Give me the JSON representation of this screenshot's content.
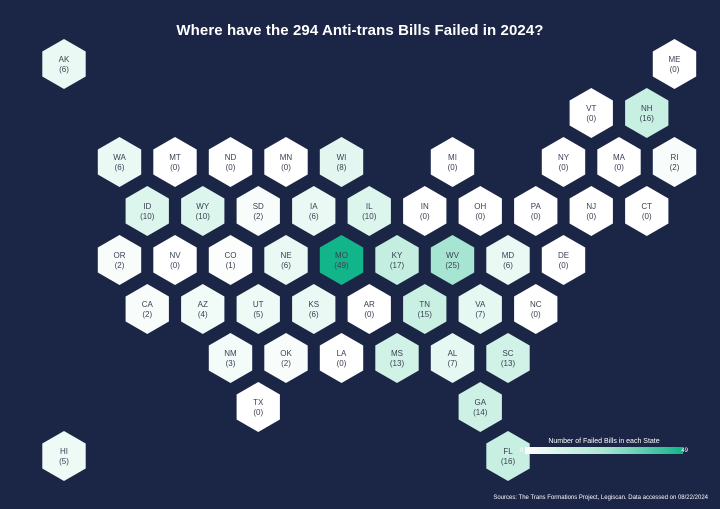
{
  "title": "Where have the 294 Anti-trans Bills Failed in 2024?",
  "legend": {
    "title": "Number of Failed Bills in each State",
    "min": "0",
    "max": "49",
    "colors": [
      "#ffffff",
      "#a9e6d2",
      "#12b58a"
    ]
  },
  "source": "Sources: The Trans Formations Project, Legiscan.  Data accessed on 08/22/2024",
  "states": [
    {
      "abbr": "AK",
      "value": 6,
      "row": 0,
      "col": 0
    },
    {
      "abbr": "ME",
      "value": 0,
      "row": 0,
      "col": 11
    },
    {
      "abbr": "VT",
      "value": 0,
      "row": 1,
      "col": 9.5
    },
    {
      "abbr": "NH",
      "value": 16,
      "row": 1,
      "col": 10.5
    },
    {
      "abbr": "WA",
      "value": 6,
      "row": 2,
      "col": 1
    },
    {
      "abbr": "MT",
      "value": 0,
      "row": 2,
      "col": 2
    },
    {
      "abbr": "ND",
      "value": 0,
      "row": 2,
      "col": 3
    },
    {
      "abbr": "MN",
      "value": 0,
      "row": 2,
      "col": 4
    },
    {
      "abbr": "WI",
      "value": 8,
      "row": 2,
      "col": 5
    },
    {
      "abbr": "MI",
      "value": 0,
      "row": 2,
      "col": 7
    },
    {
      "abbr": "NY",
      "value": 0,
      "row": 2,
      "col": 9
    },
    {
      "abbr": "MA",
      "value": 0,
      "row": 2,
      "col": 10
    },
    {
      "abbr": "RI",
      "value": 2,
      "row": 2,
      "col": 11
    },
    {
      "abbr": "ID",
      "value": 10,
      "row": 3,
      "col": 1.5
    },
    {
      "abbr": "WY",
      "value": 10,
      "row": 3,
      "col": 2.5
    },
    {
      "abbr": "SD",
      "value": 2,
      "row": 3,
      "col": 3.5
    },
    {
      "abbr": "IA",
      "value": 6,
      "row": 3,
      "col": 4.5
    },
    {
      "abbr": "IL",
      "value": 10,
      "row": 3,
      "col": 5.5
    },
    {
      "abbr": "IN",
      "value": 0,
      "row": 3,
      "col": 6.5
    },
    {
      "abbr": "OH",
      "value": 0,
      "row": 3,
      "col": 7.5
    },
    {
      "abbr": "PA",
      "value": 0,
      "row": 3,
      "col": 8.5
    },
    {
      "abbr": "NJ",
      "value": 0,
      "row": 3,
      "col": 9.5
    },
    {
      "abbr": "CT",
      "value": 0,
      "row": 3,
      "col": 10.5
    },
    {
      "abbr": "OR",
      "value": 2,
      "row": 4,
      "col": 1
    },
    {
      "abbr": "NV",
      "value": 0,
      "row": 4,
      "col": 2
    },
    {
      "abbr": "CO",
      "value": 1,
      "row": 4,
      "col": 3
    },
    {
      "abbr": "NE",
      "value": 6,
      "row": 4,
      "col": 4
    },
    {
      "abbr": "MO",
      "value": 49,
      "row": 4,
      "col": 5
    },
    {
      "abbr": "KY",
      "value": 17,
      "row": 4,
      "col": 6
    },
    {
      "abbr": "WV",
      "value": 25,
      "row": 4,
      "col": 7
    },
    {
      "abbr": "MD",
      "value": 6,
      "row": 4,
      "col": 8
    },
    {
      "abbr": "DE",
      "value": 0,
      "row": 4,
      "col": 9
    },
    {
      "abbr": "CA",
      "value": 2,
      "row": 5,
      "col": 1.5
    },
    {
      "abbr": "AZ",
      "value": 4,
      "row": 5,
      "col": 2.5
    },
    {
      "abbr": "UT",
      "value": 5,
      "row": 5,
      "col": 3.5
    },
    {
      "abbr": "KS",
      "value": 6,
      "row": 5,
      "col": 4.5
    },
    {
      "abbr": "AR",
      "value": 0,
      "row": 5,
      "col": 5.5
    },
    {
      "abbr": "TN",
      "value": 15,
      "row": 5,
      "col": 6.5
    },
    {
      "abbr": "VA",
      "value": 7,
      "row": 5,
      "col": 7.5
    },
    {
      "abbr": "NC",
      "value": 0,
      "row": 5,
      "col": 8.5
    },
    {
      "abbr": "NM",
      "value": 3,
      "row": 6,
      "col": 3
    },
    {
      "abbr": "OK",
      "value": 2,
      "row": 6,
      "col": 4
    },
    {
      "abbr": "LA",
      "value": 0,
      "row": 6,
      "col": 5
    },
    {
      "abbr": "MS",
      "value": 13,
      "row": 6,
      "col": 6
    },
    {
      "abbr": "AL",
      "value": 7,
      "row": 6,
      "col": 7
    },
    {
      "abbr": "SC",
      "value": 13,
      "row": 6,
      "col": 8
    },
    {
      "abbr": "TX",
      "value": 0,
      "row": 7,
      "col": 3.5
    },
    {
      "abbr": "GA",
      "value": 14,
      "row": 7,
      "col": 7.5
    },
    {
      "abbr": "HI",
      "value": 5,
      "row": 8,
      "col": 0
    },
    {
      "abbr": "FL",
      "value": 16,
      "row": 8,
      "col": 8
    }
  ]
}
